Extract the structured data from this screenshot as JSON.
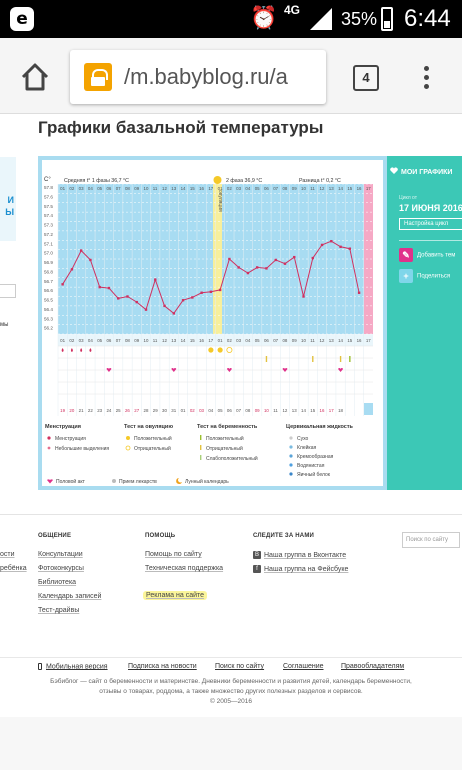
{
  "status_bar": {
    "app_icon": "e",
    "network": "4G",
    "battery": "35%",
    "time": "6:44"
  },
  "browser": {
    "url": "/m.babyblog.ru/a",
    "tab_count": "4"
  },
  "page": {
    "title": "Графики базальной температуры",
    "left_peek_text": [
      "И",
      "Ы"
    ],
    "left_peek_small": "мы"
  },
  "chart": {
    "y_unit": "C°",
    "phase1_label": "Средняя t° 1 фазы 36,7 °С",
    "phase2_label": "2 фаза 36,9 °С",
    "diff_label": "Разница t° 0,2 °С",
    "ovulation_label": "овуляция",
    "yticks": [
      "57.8",
      "57.6",
      "57.5",
      "57.4",
      "57.3",
      "57.2",
      "57.1",
      "57.0",
      "56.9",
      "56.8",
      "56.7",
      "56.6",
      "56.5",
      "56.4",
      "56.3",
      "56.2"
    ],
    "xticks": [
      "01",
      "02",
      "03",
      "04",
      "05",
      "06",
      "07",
      "08",
      "09",
      "10",
      "11",
      "12",
      "13",
      "14",
      "15",
      "16",
      "17",
      "18",
      "19",
      "20",
      "21",
      "22",
      "23",
      "24",
      "25",
      "26",
      "27"
    ],
    "xticks_phase2": [
      "01",
      "02",
      "03",
      "04",
      "05",
      "06",
      "07",
      "08",
      "09",
      "10",
      "11",
      "12",
      "13",
      "14",
      "15",
      "16"
    ],
    "bottom_dates": [
      "19",
      "20",
      "21",
      "22",
      "23",
      "24",
      "25",
      "26",
      "27",
      "28",
      "29",
      "30",
      "31",
      "01",
      "02",
      "03",
      "04",
      "05",
      "06",
      "07",
      "08",
      "09",
      "10",
      "11",
      "12",
      "13",
      "14",
      "15",
      "16",
      "17",
      "18"
    ],
    "today_marker": "17",
    "legend": {
      "col1_title": "Менструация",
      "col1": [
        "Менструация",
        "Небольшие выделения"
      ],
      "col2_title": "Тест на овуляцию",
      "col2": [
        "Положительный",
        "Отрицательный"
      ],
      "col3_title": "Тест на беременность",
      "col3": [
        "Положительный",
        "Отрицательный",
        "Слабоположительный"
      ],
      "col4_title": "Цервикальная жидкость",
      "col4": [
        "Сухо",
        "Клейкая",
        "Кремообразная",
        "Водянистая",
        "Яичный белок"
      ],
      "bottom": [
        "Половой акт",
        "Прием лекарств",
        "Лунный календарь"
      ]
    }
  },
  "chart_data": {
    "type": "line",
    "title": "",
    "xlabel": "",
    "ylabel": "C°",
    "series": [
      {
        "values": [
          36.73,
          36.89,
          37.09,
          36.99,
          36.7,
          36.69,
          36.58,
          36.6,
          36.54,
          36.46,
          36.78,
          36.5,
          36.42,
          36.56,
          36.59,
          36.64,
          36.65,
          36.67,
          37.0,
          36.91,
          36.85,
          36.91,
          36.9,
          36.99,
          36.95,
          37.02,
          36.6,
          37.01,
          37.15,
          37.19,
          37.13,
          37.11,
          36.64
        ]
      }
    ],
    "ylim": [
      36.2,
      37.8
    ],
    "annotations": [
      "овуляция"
    ],
    "grid": true
  },
  "right_panel": {
    "title": "МОИ ГРАФИКИ",
    "cycle_label": "Цикл от",
    "date": "17 ИЮНЯ 2016",
    "settings": "Настройка цикл",
    "actions": [
      "Добавить тем",
      "Поделиться"
    ]
  },
  "footer": {
    "col_titles": [
      "ОБЩЕНИЕ",
      "ПОМОЩЬ",
      "СЛЕДИТЕ ЗА НАМИ"
    ],
    "col1": [
      "Консультации",
      "Фотоконкурсы",
      "Библиотека",
      "Календарь записей",
      "Тест-драйвы"
    ],
    "col2": [
      "Помощь по сайту",
      "Техническая поддержка",
      "Реклама на сайте"
    ],
    "col3": [
      "Наша группа в Вконтакте",
      "Наша группа на Фейсбуке"
    ],
    "left_peek": [
      "ости",
      "ребёнка"
    ],
    "search_placeholder": "Поиск по сайту",
    "bottom_links": [
      "Мобильная версия",
      "Подписка на новости",
      "Поиск по сайту",
      "Соглашение",
      "Правообладателям"
    ],
    "copyright_lines": [
      "Бэбиблог — сайт о беременности и материнстве. Дневники беременности и развития детей, календарь беременности,",
      "отзывы о товарах, роддома, а также множество других полезных разделов и сервисов.",
      "© 2005—2016"
    ]
  }
}
